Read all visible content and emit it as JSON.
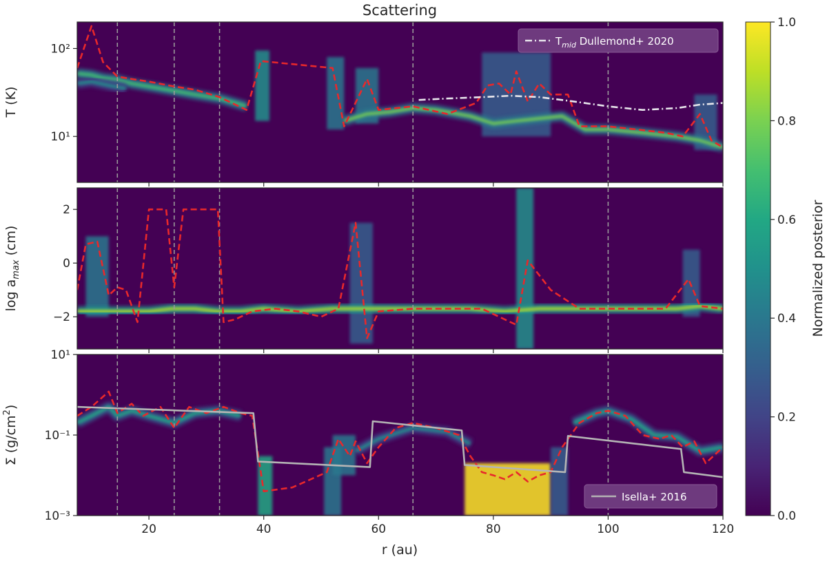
{
  "figure": {
    "title": "Scattering",
    "xlabel": "r (au)",
    "xlim": [
      7.5,
      120
    ],
    "xticks": [
      20,
      40,
      60,
      80,
      100,
      120
    ],
    "xtick_labels": [
      "20",
      "40",
      "60",
      "80",
      "100",
      "120"
    ],
    "ring_gap_lines_au": [
      14.5,
      24.4,
      32.3,
      66,
      100
    ],
    "colors": {
      "background": "#440154",
      "profile": "#e8282b",
      "vlines": "#9a9a9a",
      "reference_T": "#e8e6ec",
      "reference_sigma": "#b5b5b5"
    }
  },
  "colorbar": {
    "label": "Normalized posterior",
    "range": [
      0,
      1
    ],
    "ticks": [
      0.0,
      0.2,
      0.4,
      0.6,
      0.8,
      1.0
    ],
    "tick_labels": [
      "0.0",
      "0.2",
      "0.4",
      "0.6",
      "0.8",
      "1.0"
    ],
    "colormap": "viridis"
  },
  "chart_data": [
    {
      "type": "heatmap",
      "panel": "temperature",
      "ylabel": "T (K)",
      "yscale": "log",
      "ylim": [
        3,
        200
      ],
      "yticks": [
        10,
        100
      ],
      "ytick_labels": [
        "10¹",
        "10²"
      ],
      "series": [
        {
          "style": "dashed",
          "color": "#e8282b",
          "x": [
            7.5,
            10,
            12,
            14.5,
            17,
            20,
            24.4,
            28,
            32.3,
            37,
            39.5,
            52,
            54,
            58,
            60,
            66,
            72,
            77,
            79,
            81,
            83,
            84,
            86,
            88,
            90,
            93,
            95,
            100,
            105,
            110,
            113,
            116,
            118,
            120
          ],
          "y": [
            60,
            180,
            70,
            48,
            45,
            42,
            37,
            34,
            28,
            20,
            72,
            60,
            13,
            45,
            20,
            22,
            18,
            24,
            38,
            40,
            30,
            55,
            25,
            40,
            30,
            30,
            13,
            13,
            12,
            11,
            10,
            18,
            9,
            7.5
          ]
        },
        {
          "name": "T$_{mid}$ Dullemond+ 2020",
          "style": "dashdot",
          "color": "#e8e6ec",
          "x": [
            67,
            72,
            78,
            83,
            88,
            94,
            100,
            106,
            112,
            116,
            120
          ],
          "y": [
            26,
            27,
            28,
            29,
            28,
            25,
            22,
            20,
            21,
            23,
            24
          ]
        }
      ],
      "legend": {
        "entries": [
          "T",
          "mid",
          " Dullemond+ 2020"
        ],
        "loc": "upper right"
      },
      "posterior_ridges": [
        {
          "x": [
            7.5,
            10,
            12,
            14.5,
            17,
            20,
            24.4,
            28,
            32.3,
            37
          ],
          "y": [
            52,
            50,
            46,
            44,
            40,
            37,
            33,
            30,
            27,
            22
          ],
          "strength": 0.7
        },
        {
          "x": [
            7.5,
            10,
            13,
            16
          ],
          "y": [
            40,
            42,
            38,
            35
          ],
          "strength": 0.45
        },
        {
          "x": [
            54,
            58,
            62,
            66,
            70,
            76,
            80,
            84,
            88,
            92,
            96,
            100,
            106,
            112,
            116,
            120
          ],
          "y": [
            15,
            18,
            19,
            21,
            20,
            17,
            14,
            15,
            16,
            17,
            12,
            12,
            11,
            10,
            9,
            7.5
          ],
          "strength": 0.75
        }
      ],
      "posterior_columns": [
        {
          "x": [
            38.5,
            41
          ],
          "y": [
            15,
            95
          ],
          "strength": 0.45
        },
        {
          "x": [
            51,
            54
          ],
          "y": [
            12,
            80
          ],
          "strength": 0.4
        },
        {
          "x": [
            56,
            60
          ],
          "y": [
            14,
            60
          ],
          "strength": 0.35
        },
        {
          "x": [
            78,
            90
          ],
          "y": [
            10,
            90
          ],
          "strength": 0.3
        },
        {
          "x": [
            115,
            119
          ],
          "y": [
            7,
            30
          ],
          "strength": 0.3
        }
      ]
    },
    {
      "type": "heatmap",
      "panel": "grain-size",
      "ylabel": "log a",
      "ylabel_sub": "max",
      "ylabel_units": " (cm)",
      "ylim": [
        -3.2,
        2.8
      ],
      "yticks": [
        -2,
        0,
        2
      ],
      "ytick_labels": [
        "−2",
        "0",
        "2"
      ],
      "series": [
        {
          "style": "dashed",
          "color": "#e8282b",
          "x": [
            7.5,
            9,
            11,
            13,
            14.5,
            16,
            18,
            20,
            22,
            23,
            24.4,
            26,
            28,
            30,
            32,
            33,
            35,
            38,
            42,
            46,
            50,
            53,
            56,
            58,
            60,
            66,
            72,
            78,
            81,
            84,
            86,
            90,
            95,
            100,
            105,
            110,
            114,
            116,
            120
          ],
          "y": [
            -1.0,
            0.7,
            0.8,
            -1.2,
            -0.9,
            -1.0,
            -2.2,
            2.0,
            2.0,
            2.0,
            -0.9,
            2.0,
            2.0,
            2.0,
            2.0,
            -2.2,
            -2.1,
            -1.8,
            -1.7,
            -1.8,
            -2.0,
            -1.7,
            1.5,
            -2.8,
            -1.8,
            -1.7,
            -1.7,
            -1.7,
            -2.0,
            -2.3,
            0.1,
            -1.0,
            -1.7,
            -1.7,
            -1.7,
            -1.7,
            -0.6,
            -1.6,
            -1.7
          ]
        }
      ],
      "posterior_ridges": [
        {
          "x": [
            7.5,
            12,
            16,
            20,
            24,
            28,
            32,
            36,
            40,
            46,
            52,
            58,
            64,
            70,
            76,
            82,
            88,
            94,
            100,
            106,
            112,
            116,
            120
          ],
          "y": [
            -1.8,
            -1.8,
            -1.8,
            -1.8,
            -1.7,
            -1.7,
            -1.8,
            -1.8,
            -1.7,
            -1.8,
            -1.7,
            -1.7,
            -1.7,
            -1.7,
            -1.7,
            -1.8,
            -1.7,
            -1.7,
            -1.7,
            -1.7,
            -1.7,
            -1.6,
            -1.7
          ],
          "strength": 0.9
        }
      ],
      "posterior_columns": [
        {
          "x": [
            9,
            13
          ],
          "y": [
            -2.0,
            1.0
          ],
          "strength": 0.35
        },
        {
          "x": [
            55,
            59
          ],
          "y": [
            -3.0,
            1.5
          ],
          "strength": 0.25
        },
        {
          "x": [
            84,
            87
          ],
          "y": [
            -3.2,
            2.8
          ],
          "strength": 0.5
        },
        {
          "x": [
            113,
            116
          ],
          "y": [
            -2.0,
            0.5
          ],
          "strength": 0.25
        }
      ]
    },
    {
      "type": "heatmap",
      "panel": "surface-density",
      "ylabel": "Σ (g/cm",
      "ylabel_sup": "2",
      "ylabel_end": ")",
      "yscale": "log",
      "ylim": [
        0.001,
        10
      ],
      "yticks": [
        0.001,
        0.1,
        10
      ],
      "ytick_labels": [
        "10⁻³",
        "10⁻¹",
        "10¹"
      ],
      "series": [
        {
          "style": "dashed",
          "color": "#e8282b",
          "x": [
            7.5,
            10,
            13,
            14.5,
            17,
            19,
            22,
            24.4,
            27,
            30,
            33,
            36,
            38,
            40,
            45,
            51,
            53,
            55,
            56,
            58,
            60,
            63,
            66,
            70,
            74,
            76,
            78,
            80,
            82,
            84,
            86,
            88,
            90,
            92,
            95,
            98,
            100,
            103,
            106,
            109,
            111,
            113,
            115,
            117,
            120
          ],
          "y": [
            0.3,
            0.5,
            1.2,
            0.35,
            0.6,
            0.3,
            0.5,
            0.15,
            0.5,
            0.35,
            0.5,
            0.35,
            0.3,
            0.004,
            0.005,
            0.012,
            0.08,
            0.03,
            0.07,
            0.02,
            0.05,
            0.15,
            0.2,
            0.15,
            0.1,
            0.03,
            0.012,
            0.01,
            0.008,
            0.012,
            0.007,
            0.01,
            0.012,
            0.05,
            0.2,
            0.35,
            0.4,
            0.3,
            0.1,
            0.08,
            0.1,
            0.05,
            0.07,
            0.02,
            0.05
          ]
        },
        {
          "name": "Isella+ 2016",
          "style": "solid",
          "color": "#b5b5b5",
          "x": [
            7.5,
            38.2,
            39,
            58.5,
            59,
            74.5,
            75,
            92.5,
            93,
            112.7,
            113.2,
            120
          ],
          "y": [
            0.5,
            0.35,
            0.022,
            0.016,
            0.22,
            0.13,
            0.018,
            0.012,
            0.095,
            0.045,
            0.012,
            0.009
          ]
        }
      ],
      "legend": {
        "entries": [
          "Isella+ 2016"
        ],
        "loc": "lower right"
      },
      "posterior_ridges": [
        {
          "x": [
            7.5,
            10,
            13,
            14.5,
            17,
            20,
            24.4,
            28,
            32,
            36
          ],
          "y": [
            0.2,
            0.3,
            0.5,
            0.3,
            0.4,
            0.3,
            0.2,
            0.35,
            0.4,
            0.3
          ],
          "strength": 0.6
        },
        {
          "x": [
            56,
            60,
            66,
            72,
            76
          ],
          "y": [
            0.04,
            0.08,
            0.15,
            0.12,
            0.06
          ],
          "strength": 0.45
        },
        {
          "x": [
            94,
            98,
            100,
            104,
            108,
            112,
            116,
            120
          ],
          "y": [
            0.2,
            0.35,
            0.4,
            0.25,
            0.1,
            0.09,
            0.04,
            0.05
          ],
          "strength": 0.6
        }
      ],
      "posterior_columns": [
        {
          "x": [
            39,
            41.5
          ],
          "y": [
            0.001,
            0.03
          ],
          "strength": 0.55
        },
        {
          "x": [
            50.5,
            53.5
          ],
          "y": [
            0.001,
            0.05
          ],
          "strength": 0.4
        },
        {
          "x": [
            52,
            56
          ],
          "y": [
            0.01,
            0.1
          ],
          "strength": 0.35
        },
        {
          "x": [
            75,
            90
          ],
          "y": [
            0.001,
            0.02
          ],
          "strength": 0.95
        },
        {
          "x": [
            90,
            93
          ],
          "y": [
            0.001,
            0.05
          ],
          "strength": 0.3
        }
      ]
    }
  ]
}
